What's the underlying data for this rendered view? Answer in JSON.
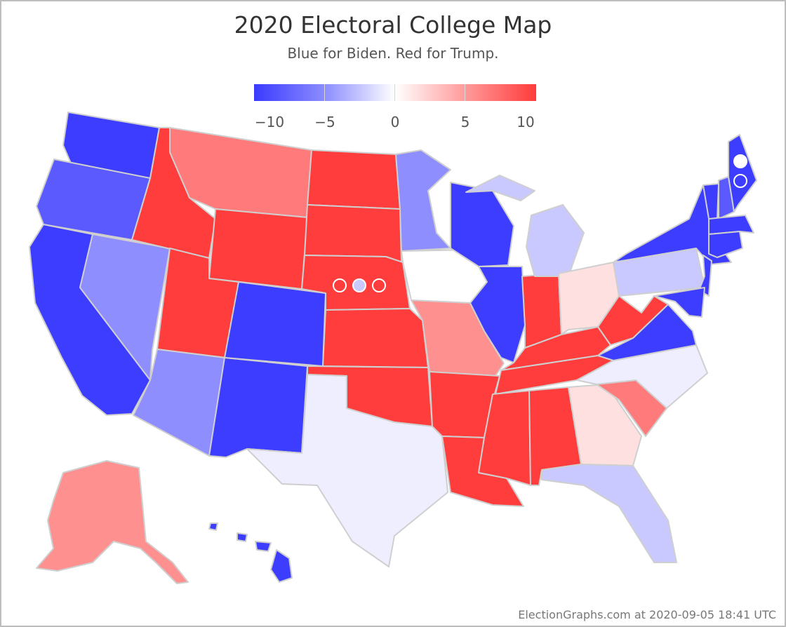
{
  "title": "2020 Electoral College Map",
  "subtitle": "Blue for Biden. Red for Trump.",
  "legend": {
    "ticks": [
      "−10",
      "−5",
      "0",
      "5",
      "10"
    ],
    "colors": [
      "#3b3bff",
      "#8c8cff",
      "#ffffff",
      "#ff9a9a",
      "#ff3b3b"
    ]
  },
  "footer": "ElectionGraphs.com at 2020-09-05 18:41 UTC",
  "colors": {
    "strong_biden": "#3d3dff",
    "lean_biden": "#5a5aff",
    "soft_biden": "#8e8eff",
    "slight_biden": "#c9c9ff",
    "faint_biden": "#eeeeff",
    "tossup": "#ffffff",
    "faint_trump": "#ffe0e0",
    "soft_trump": "#ff9090",
    "lean_trump": "#ff7a7a",
    "strong_trump": "#ff3d3d",
    "border": "#cfcfcf"
  }
}
